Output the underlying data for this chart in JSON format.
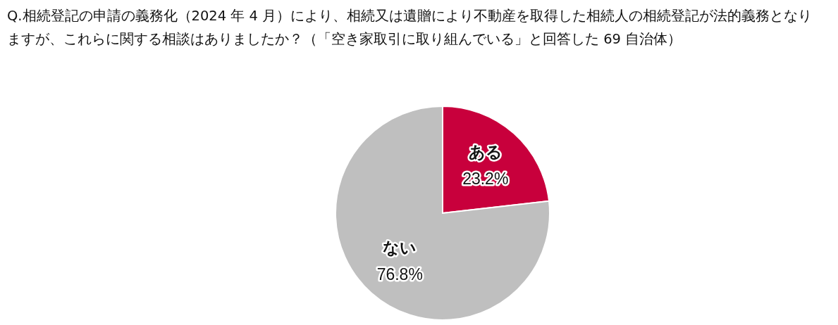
{
  "chart_data": {
    "type": "pie",
    "title": "Q.相続登記の申請の義務化（2024 年 4 月）により、相続又は遺贈により不動産を取得した相続人の相続登記が法的義務となりますが、これらに関する相談はありましたか？（「空き家取引に取り組んでいる」と回答した 69 自治体）",
    "categories": [
      "ある",
      "ない"
    ],
    "values": [
      23.2,
      76.8
    ],
    "value_labels": [
      "23.2%",
      "76.8%"
    ],
    "colors": [
      "#c8003c",
      "#bfbfbf"
    ]
  }
}
